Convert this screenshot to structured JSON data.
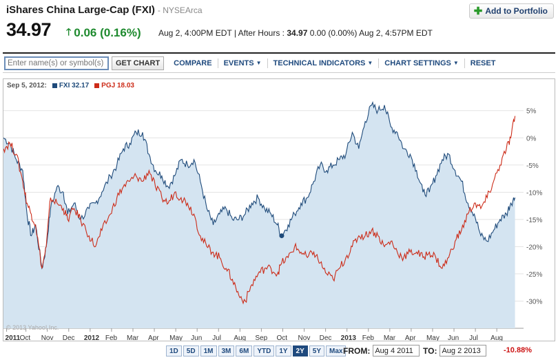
{
  "header": {
    "title": "iShares China Large-Cap (FXI)",
    "exchange": "- NYSEArca",
    "price": "34.97",
    "change": "0.06 (0.16%)",
    "quote_time": "Aug 2, 4:00PM EDT",
    "after_hours_label": "| After Hours :",
    "after_hours_price": "34.97",
    "after_hours_change": "0.00 (0.00%) Aug 2, 4:57PM EDT",
    "add_to_portfolio": "Add to Portfolio"
  },
  "toolbar": {
    "search_placeholder": "Enter name(s) or symbol(s)",
    "get_chart": "GET CHART",
    "compare": "COMPARE",
    "events": "EVENTS",
    "technical_indicators": "TECHNICAL INDICATORS",
    "chart_settings": "CHART SETTINGS",
    "reset": "RESET"
  },
  "legend": {
    "date": "Sep 5, 2012:",
    "fxi": "FXI 32.17",
    "pgj": "PGJ 18.03"
  },
  "copyright": "© 2013 Yahoo! Inc.",
  "ranges": [
    "1D",
    "5D",
    "1M",
    "3M",
    "6M",
    "YTD",
    "1Y",
    "2Y",
    "5Y",
    "Max"
  ],
  "active_range": "2Y",
  "date_range": {
    "from_label": "FROM:",
    "from_value": "Aug 4 2011",
    "to_label": "TO:",
    "to_value": "Aug 2 2013",
    "change": "-10.88%"
  },
  "colors": {
    "fxi": "#1e4a7a",
    "pgj": "#cc2b18",
    "area": "#d4e4f1"
  },
  "chart_data": {
    "type": "line",
    "x_axis_labels": [
      "2011",
      "Oct",
      "Nov",
      "Dec",
      "2012",
      "Feb",
      "Mar",
      "Apr",
      "May",
      "Jun",
      "Jul",
      "Aug",
      "Sep",
      "Oct",
      "Nov",
      "Dec",
      "2013",
      "Feb",
      "Mar",
      "Apr",
      "May",
      "Jun",
      "Jul",
      "Aug"
    ],
    "y_axis_labels": [
      "5%",
      "0%",
      "-5%",
      "-10%",
      "-15%",
      "-20%",
      "-25%",
      "-30%"
    ],
    "ylim": [
      -35,
      8
    ],
    "grid": true,
    "x_unit": "months since Aug 2011",
    "marker": {
      "series": "FXI",
      "x": 13.0,
      "y": -18.0
    },
    "series": [
      {
        "name": "FXI",
        "fill": true,
        "points": [
          [
            0,
            0
          ],
          [
            0.3,
            -1
          ],
          [
            0.6,
            -4
          ],
          [
            0.9,
            -6
          ],
          [
            1.1,
            -14
          ],
          [
            1.3,
            -18
          ],
          [
            1.5,
            -16
          ],
          [
            1.8,
            -24
          ],
          [
            2.0,
            -20
          ],
          [
            2.2,
            -13
          ],
          [
            2.5,
            -9
          ],
          [
            2.8,
            -10
          ],
          [
            3.0,
            -14
          ],
          [
            3.3,
            -12
          ],
          [
            3.6,
            -15
          ],
          [
            4.0,
            -13
          ],
          [
            4.3,
            -12
          ],
          [
            4.6,
            -10
          ],
          [
            5.0,
            -7
          ],
          [
            5.3,
            -5
          ],
          [
            5.6,
            -2
          ],
          [
            5.9,
            -1
          ],
          [
            6.2,
            1
          ],
          [
            6.5,
            1
          ],
          [
            6.8,
            -3
          ],
          [
            7.1,
            -6
          ],
          [
            7.4,
            -7
          ],
          [
            7.7,
            -9
          ],
          [
            8.0,
            -7
          ],
          [
            8.3,
            -4
          ],
          [
            8.6,
            -5
          ],
          [
            8.9,
            -4
          ],
          [
            9.2,
            -8
          ],
          [
            9.5,
            -13
          ],
          [
            9.8,
            -16
          ],
          [
            10.1,
            -14
          ],
          [
            10.4,
            -13
          ],
          [
            10.7,
            -15
          ],
          [
            11.0,
            -15
          ],
          [
            11.3,
            -14
          ],
          [
            11.6,
            -12
          ],
          [
            11.9,
            -11
          ],
          [
            12.2,
            -13
          ],
          [
            12.5,
            -14
          ],
          [
            12.8,
            -16
          ],
          [
            13.0,
            -18
          ],
          [
            13.3,
            -16
          ],
          [
            13.6,
            -14
          ],
          [
            13.9,
            -12
          ],
          [
            14.2,
            -11
          ],
          [
            14.5,
            -8
          ],
          [
            14.8,
            -5
          ],
          [
            15.1,
            -6
          ],
          [
            15.4,
            -5
          ],
          [
            15.7,
            -4
          ],
          [
            16.0,
            -3
          ],
          [
            16.3,
            1
          ],
          [
            16.6,
            -2
          ],
          [
            16.9,
            3
          ],
          [
            17.2,
            6
          ],
          [
            17.5,
            5
          ],
          [
            17.8,
            6
          ],
          [
            18.1,
            2
          ],
          [
            18.4,
            1
          ],
          [
            18.7,
            -2
          ],
          [
            19.0,
            -3
          ],
          [
            19.3,
            -6
          ],
          [
            19.6,
            -10
          ],
          [
            19.9,
            -10
          ],
          [
            20.2,
            -7
          ],
          [
            20.5,
            -4
          ],
          [
            20.8,
            -3
          ],
          [
            21.1,
            -6
          ],
          [
            21.4,
            -8
          ],
          [
            21.7,
            -12
          ],
          [
            22.0,
            -14
          ],
          [
            22.3,
            -18
          ],
          [
            22.6,
            -19
          ],
          [
            22.9,
            -17
          ],
          [
            23.2,
            -15
          ],
          [
            23.5,
            -14
          ],
          [
            23.7,
            -12
          ],
          [
            23.9,
            -11
          ]
        ]
      },
      {
        "name": "PGJ",
        "fill": false,
        "points": [
          [
            0,
            -2
          ],
          [
            0.3,
            -1
          ],
          [
            0.6,
            -3
          ],
          [
            0.9,
            -8
          ],
          [
            1.1,
            -12
          ],
          [
            1.3,
            -14
          ],
          [
            1.5,
            -16
          ],
          [
            1.8,
            -24
          ],
          [
            2.0,
            -20
          ],
          [
            2.2,
            -11
          ],
          [
            2.5,
            -12
          ],
          [
            2.8,
            -13
          ],
          [
            3.0,
            -15
          ],
          [
            3.3,
            -13
          ],
          [
            3.6,
            -15
          ],
          [
            4.0,
            -18
          ],
          [
            4.3,
            -20
          ],
          [
            4.6,
            -17
          ],
          [
            5.0,
            -14
          ],
          [
            5.3,
            -11
          ],
          [
            5.6,
            -9
          ],
          [
            5.9,
            -8
          ],
          [
            6.2,
            -7
          ],
          [
            6.5,
            -8
          ],
          [
            6.8,
            -6
          ],
          [
            7.1,
            -9
          ],
          [
            7.4,
            -11
          ],
          [
            7.7,
            -12
          ],
          [
            8.0,
            -10
          ],
          [
            8.3,
            -11
          ],
          [
            8.6,
            -12
          ],
          [
            8.9,
            -14
          ],
          [
            9.2,
            -18
          ],
          [
            9.5,
            -20
          ],
          [
            9.8,
            -21
          ],
          [
            10.1,
            -22
          ],
          [
            10.4,
            -24
          ],
          [
            10.7,
            -26
          ],
          [
            11.0,
            -29
          ],
          [
            11.3,
            -30
          ],
          [
            11.6,
            -27
          ],
          [
            11.9,
            -25
          ],
          [
            12.2,
            -24
          ],
          [
            12.5,
            -24
          ],
          [
            12.8,
            -25
          ],
          [
            13.0,
            -23
          ],
          [
            13.3,
            -22
          ],
          [
            13.6,
            -20
          ],
          [
            13.9,
            -21
          ],
          [
            14.2,
            -22
          ],
          [
            14.5,
            -21
          ],
          [
            14.8,
            -23
          ],
          [
            15.1,
            -25
          ],
          [
            15.4,
            -26
          ],
          [
            15.7,
            -24
          ],
          [
            16.0,
            -22
          ],
          [
            16.3,
            -20
          ],
          [
            16.6,
            -18
          ],
          [
            16.9,
            -18
          ],
          [
            17.2,
            -17
          ],
          [
            17.5,
            -18
          ],
          [
            17.8,
            -20
          ],
          [
            18.1,
            -19
          ],
          [
            18.4,
            -21
          ],
          [
            18.7,
            -22
          ],
          [
            19.0,
            -21
          ],
          [
            19.3,
            -21
          ],
          [
            19.6,
            -22
          ],
          [
            19.9,
            -21
          ],
          [
            20.2,
            -22
          ],
          [
            20.5,
            -24
          ],
          [
            20.8,
            -22
          ],
          [
            21.1,
            -19
          ],
          [
            21.4,
            -17
          ],
          [
            21.7,
            -14
          ],
          [
            22.0,
            -12
          ],
          [
            22.3,
            -13
          ],
          [
            22.6,
            -11
          ],
          [
            22.9,
            -8
          ],
          [
            23.2,
            -5
          ],
          [
            23.5,
            -2
          ],
          [
            23.7,
            0
          ],
          [
            23.9,
            4
          ]
        ]
      }
    ]
  }
}
